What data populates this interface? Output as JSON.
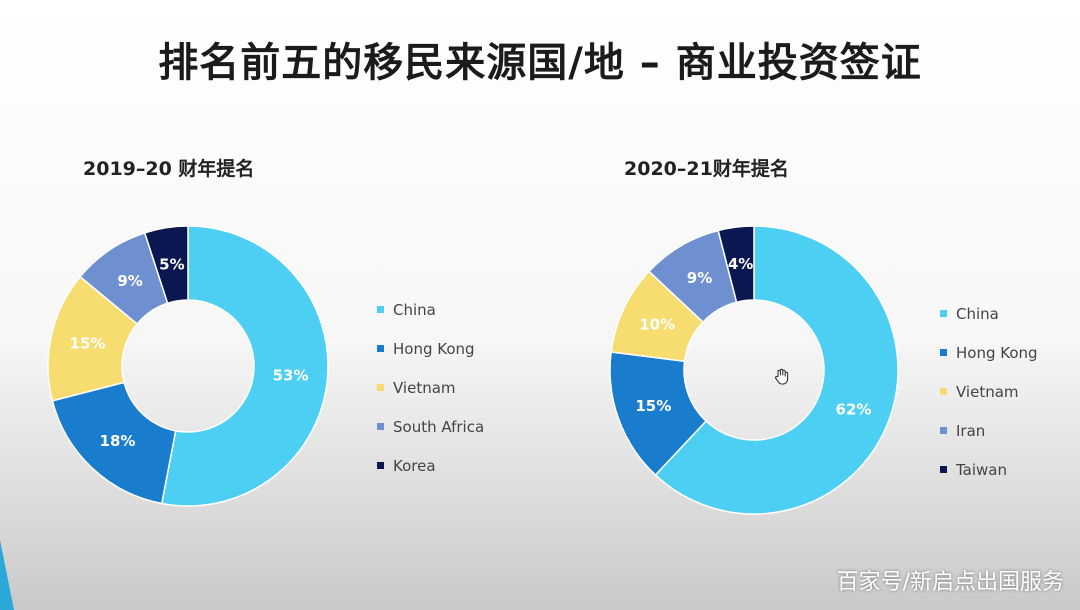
{
  "title": "排名前五的移民来源国/地 – 商业投资签证",
  "watermark": "百家号/新启点出国服务",
  "colors": {
    "china": "#4dcff4",
    "hongkong": "#1a7ccc",
    "vietnam": "#f7dc6f",
    "southafrica_iran": "#6e8fd0",
    "korea_taiwan": "#0b1750"
  },
  "chart_data": [
    {
      "type": "pie",
      "title": "2019–20 财年提名",
      "categories": [
        "China",
        "Hong Kong",
        "Vietnam",
        "South Africa",
        "Korea"
      ],
      "values": [
        53,
        18,
        15,
        9,
        5
      ],
      "labels": [
        "53%",
        "18%",
        "15%",
        "9%",
        "5%"
      ],
      "colors": [
        "#4dcff4",
        "#1a7ccc",
        "#f7dc6f",
        "#6e8fd0",
        "#0b1750"
      ],
      "label_colors": [
        "#ffffff",
        "#ffffff",
        "#ffffff",
        "#ffffff",
        "#ffffff"
      ],
      "legend_position": "right"
    },
    {
      "type": "pie",
      "title": "2020–21财年提名",
      "categories": [
        "China",
        "Hong Kong",
        "Vietnam",
        "Iran",
        "Taiwan"
      ],
      "values": [
        62,
        15,
        10,
        9,
        4
      ],
      "labels": [
        "62%",
        "15%",
        "10%",
        "9%",
        "4%"
      ],
      "colors": [
        "#4dcff4",
        "#1a7ccc",
        "#f7dc6f",
        "#6e8fd0",
        "#0b1750"
      ],
      "label_colors": [
        "#ffffff",
        "#ffffff",
        "#ffffff",
        "#ffffff",
        "#ffffff"
      ],
      "legend_position": "right"
    }
  ]
}
